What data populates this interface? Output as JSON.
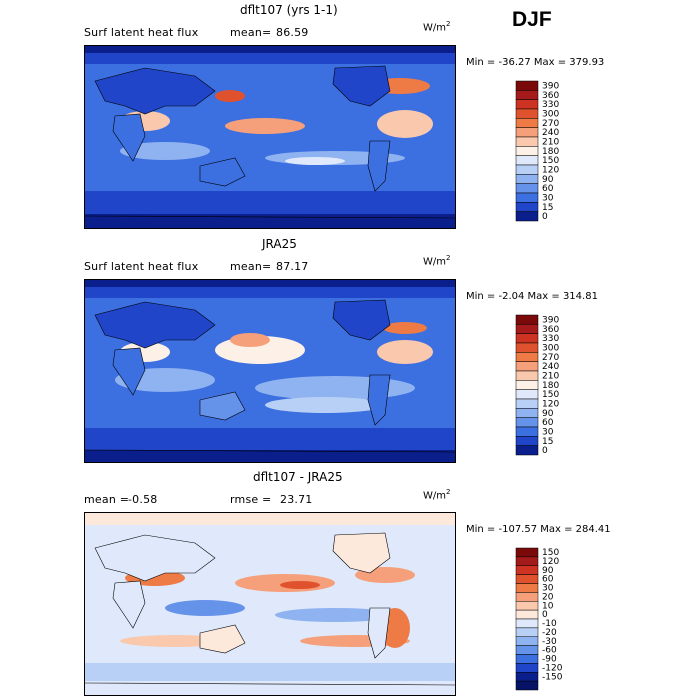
{
  "season": "DJF",
  "units_base": "W/m",
  "units_exp": "2",
  "chart_data": [
    {
      "type": "heatmap",
      "title": "dflt107 (yrs 1-1)",
      "subtitle_left": "Surf latent heat flux",
      "stat_label": "mean=",
      "stat_value": "86.59",
      "min_max": "Min = -36.27 Max = 379.93",
      "colorbar_levels": [
        "390",
        "360",
        "330",
        "300",
        "270",
        "240",
        "210",
        "180",
        "150",
        "120",
        "90",
        "60",
        "30",
        "15",
        "0"
      ],
      "colors": [
        "#7a0a0a",
        "#a51a1a",
        "#cc3322",
        "#e0522d",
        "#ee7a45",
        "#f5a07a",
        "#fac8ad",
        "#fdf0e6",
        "#dfe9fb",
        "#b8d0f5",
        "#8fb2f0",
        "#6693ea",
        "#3c6fe0",
        "#2045c8",
        "#0a1e8c"
      ]
    },
    {
      "type": "heatmap",
      "title": "JRA25",
      "subtitle_left": "Surf latent heat flux",
      "stat_label": "mean=",
      "stat_value": "87.17",
      "min_max": "Min =  -2.04 Max = 314.81",
      "colorbar_levels": [
        "390",
        "360",
        "330",
        "300",
        "270",
        "240",
        "210",
        "180",
        "150",
        "120",
        "90",
        "60",
        "30",
        "15",
        "0"
      ],
      "colors": [
        "#7a0a0a",
        "#a51a1a",
        "#cc3322",
        "#e0522d",
        "#ee7a45",
        "#f5a07a",
        "#fac8ad",
        "#fdf0e6",
        "#dfe9fb",
        "#b8d0f5",
        "#8fb2f0",
        "#6693ea",
        "#3c6fe0",
        "#2045c8",
        "#0a1e8c"
      ]
    },
    {
      "type": "heatmap",
      "title": "dflt107 - JRA25",
      "stat_label": "mean =",
      "stat_value": "-0.58",
      "stat2_label": "rmse =",
      "stat2_value": "23.71",
      "min_max": "Min = -107.57 Max = 284.41",
      "colorbar_levels": [
        "150",
        "120",
        "90",
        "60",
        "30",
        "20",
        "10",
        "0",
        "-10",
        "-20",
        "-30",
        "-60",
        "-90",
        "-120",
        "-150"
      ],
      "colors": [
        "#7a0a0a",
        "#a51a1a",
        "#cc3322",
        "#e0522d",
        "#ee7a45",
        "#f5a07a",
        "#fac8ad",
        "#fde8dc",
        "#dfe9fb",
        "#b8d0f5",
        "#8fb2f0",
        "#6693ea",
        "#3c6fe0",
        "#2045c8",
        "#0a1e8c",
        "#061266"
      ]
    }
  ]
}
